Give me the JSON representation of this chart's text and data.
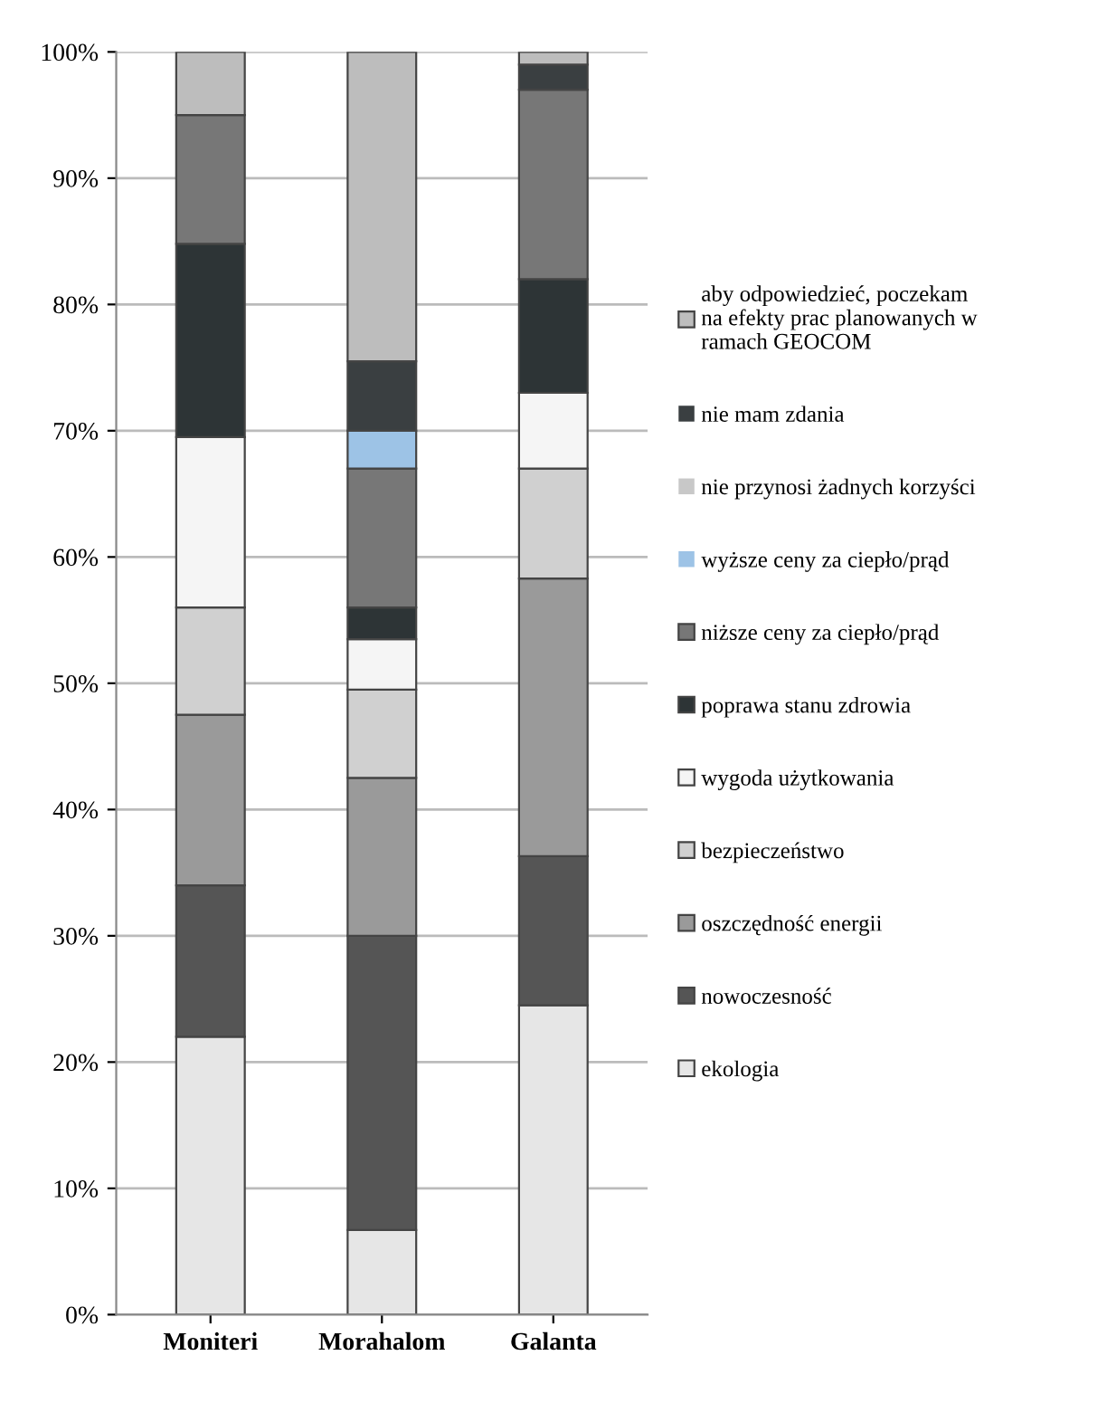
{
  "chart_data": {
    "type": "bar",
    "stacked": true,
    "categories": [
      "Moniteri",
      "Morahalom",
      "Galanta"
    ],
    "series": [
      {
        "name": "ekologia",
        "color": "#e6e6e6",
        "values": [
          22,
          6.7,
          24.5
        ]
      },
      {
        "name": "nowoczesność",
        "color": "#555555",
        "values": [
          12,
          23.3,
          11.8
        ]
      },
      {
        "name": "oszczędność energii",
        "color": "#9a9a9a",
        "values": [
          13.5,
          12.5,
          22
        ]
      },
      {
        "name": "bezpieczeństwo",
        "color": "#d0d0d0",
        "values": [
          8.5,
          7,
          8.7
        ]
      },
      {
        "name": "wygoda użytkowania",
        "color": "#f5f5f5",
        "values": [
          13.5,
          4,
          6
        ]
      },
      {
        "name": "poprawa stanu zdrowia",
        "color": "#2d3436",
        "values": [
          15.3,
          2.5,
          9
        ]
      },
      {
        "name": "niższe ceny za ciepło/prąd",
        "color": "#777777",
        "values": [
          10.2,
          11,
          15
        ]
      },
      {
        "name": "wyższe ceny za ciepło/prąd",
        "color": "#9dc3e6",
        "values": [
          0,
          3,
          0
        ]
      },
      {
        "name": "nie przynosi żadnych korzyści",
        "color": "#c8c8c8",
        "values": [
          0,
          0,
          0
        ]
      },
      {
        "name": "nie mam zdania",
        "color": "#3a3f41",
        "values": [
          0,
          5.5,
          2
        ]
      },
      {
        "name": "aby odpowiedzieć, poczekam\nna efekty prac planowanych w\nramach GEOCOM",
        "color": "#bdbdbd",
        "values": [
          5,
          24.5,
          1
        ]
      }
    ],
    "ylim": [
      0,
      100
    ],
    "yticks": [
      {
        "value": 0,
        "label": "0%"
      },
      {
        "value": 10,
        "label": "10%"
      },
      {
        "value": 20,
        "label": "20%"
      },
      {
        "value": 30,
        "label": "30%"
      },
      {
        "value": 40,
        "label": "40%"
      },
      {
        "value": 50,
        "label": "50%"
      },
      {
        "value": 60,
        "label": "60%"
      },
      {
        "value": 70,
        "label": "70%"
      },
      {
        "value": 80,
        "label": "80%"
      },
      {
        "value": 90,
        "label": "90%"
      },
      {
        "value": 100,
        "label": "100%"
      }
    ],
    "grid": "y",
    "legend": "right"
  }
}
